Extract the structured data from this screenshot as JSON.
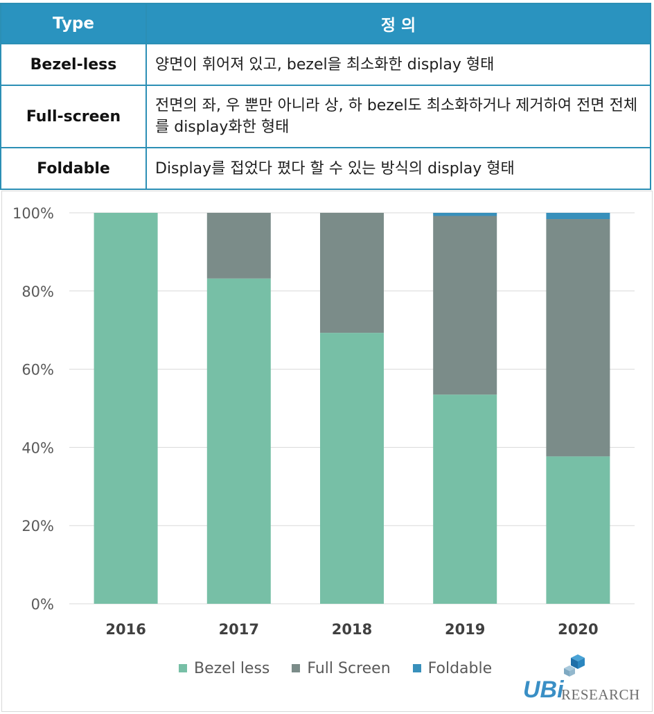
{
  "table": {
    "header": {
      "type": "Type",
      "definition": "정 의"
    },
    "rows": [
      {
        "type": "Bezel-less",
        "definition": "양면이 휘어져 있고, bezel을 최소화한 display 형태"
      },
      {
        "type": "Full-screen",
        "definition": "전면의 좌, 우 뿐만 아니라 상, 하 bezel도 최소화하거나 제거하여 전면 전체를 display화한 형태"
      },
      {
        "type": "Foldable",
        "definition": "Display를 접었다 폈다 할 수 있는 방식의 display 형태"
      }
    ]
  },
  "chart_data": {
    "type": "bar",
    "stacked": true,
    "categories": [
      "2016",
      "2017",
      "2018",
      "2019",
      "2020"
    ],
    "series": [
      {
        "name": "Bezel less",
        "color": "#77bfa6",
        "values": [
          100,
          83.2,
          69.3,
          53.5,
          37.7
        ]
      },
      {
        "name": "Full Screen",
        "color": "#7b8c89",
        "values": [
          0,
          16.8,
          30.7,
          45.7,
          60.7
        ]
      },
      {
        "name": "Foldable",
        "color": "#3890bb",
        "values": [
          0,
          0,
          0,
          0.8,
          1.6
        ]
      }
    ],
    "yticks": [
      "0%",
      "20%",
      "40%",
      "60%",
      "80%",
      "100%"
    ],
    "ylim": [
      0,
      100
    ],
    "grid": true,
    "legend_position": "bottom"
  },
  "logo": {
    "ubi": "UBi",
    "research": "RESEARCH"
  }
}
